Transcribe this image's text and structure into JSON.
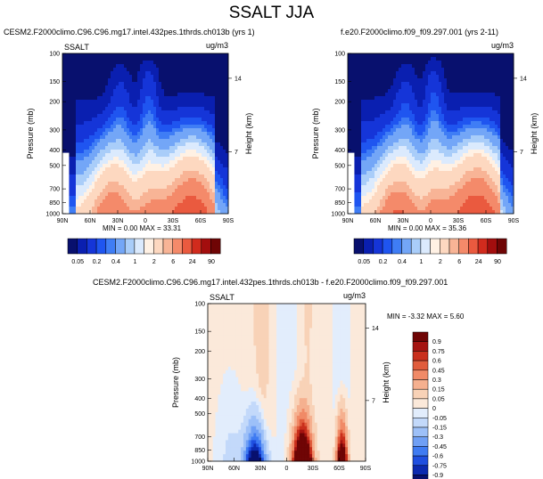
{
  "figure": {
    "title": "SSALT JJA"
  },
  "colors": {
    "abs_palette": [
      "#08106e",
      "#0a1fb0",
      "#1535d8",
      "#1f55f0",
      "#3f7df5",
      "#73a6f7",
      "#a9cdf9",
      "#dbeafd",
      "#fff1e4",
      "#fdd8c0",
      "#f8b496",
      "#f48a6a",
      "#ea5a3f",
      "#d12b1d",
      "#a30e0e",
      "#6f0505"
    ],
    "diff_palette": [
      "#08106e",
      "#0c2ab0",
      "#1f4fe0",
      "#3f7bf2",
      "#6f9ff5",
      "#9dc0f8",
      "#c3d9fa",
      "#e2edfc",
      "#fbe9da",
      "#f8d2b7",
      "#f5b08f",
      "#f08a67",
      "#e05c3c",
      "#c92f1c",
      "#a51411",
      "#6f0505"
    ]
  },
  "chart_data": [
    {
      "type": "heatmap",
      "title": "CESM2.F2000climo.C96.C96.mg17.intel.432pes.1thrds.ch013b (yrs 1)",
      "left_label": "SSALT",
      "units": "ug/m3",
      "ylabel": "Pressure (mb)",
      "ylabel_right": "Height (km)",
      "x_ticks": [
        "90N",
        "60N",
        "30N",
        "0",
        "30S",
        "60S",
        "90S"
      ],
      "y_ticks": [
        "100",
        "150",
        "200",
        "300",
        "400",
        "500",
        "700",
        "850",
        "1000"
      ],
      "y_right_ticks": [
        "14",
        "7"
      ],
      "stats": "MIN = 0.00  MAX = 33.31",
      "min": 0.0,
      "max": 33.31
    },
    {
      "type": "heatmap",
      "title": "f.e20.F2000climo.f09_f09.297.001 (yrs 2-11)",
      "units": "ug/m3",
      "ylabel": "Pressure (mb)",
      "ylabel_right": "Height (km)",
      "x_ticks": [
        "90N",
        "60N",
        "30N",
        "0",
        "30S",
        "60S",
        "90S"
      ],
      "y_ticks": [
        "100",
        "150",
        "200",
        "300",
        "400",
        "500",
        "700",
        "850",
        "1000"
      ],
      "y_right_ticks": [
        "14",
        "7"
      ],
      "stats": "MIN = 0.00  MAX = 35.36",
      "min": 0.0,
      "max": 35.36
    },
    {
      "type": "heatmap",
      "title": "CESM2.F2000climo.C96.C96.mg17.intel.432pes.1thrds.ch013b - f.e20.F2000climo.f09_f09.297.001",
      "left_label": "SSALT",
      "units": "ug/m3",
      "ylabel": "Pressure (mb)",
      "ylabel_right": "Height (km)",
      "x_ticks": [
        "90N",
        "60N",
        "30N",
        "0",
        "30S",
        "60S",
        "90S"
      ],
      "y_ticks": [
        "100",
        "150",
        "200",
        "300",
        "400",
        "500",
        "700",
        "850",
        "1000"
      ],
      "y_right_ticks": [
        "14",
        "7"
      ],
      "stats": "MIN = -3.32  MAX =  5.60",
      "min": -3.32,
      "max": 5.6
    }
  ],
  "colorbars": {
    "abs_labels": [
      "0.05",
      "0.2",
      "0.4",
      "1",
      "2",
      "6",
      "24",
      "90"
    ],
    "diff_labels": [
      "0.9",
      "0.75",
      "0.6",
      "0.45",
      "0.3",
      "0.15",
      "0.05",
      "0",
      "-0.05",
      "-0.15",
      "-0.3",
      "-0.45",
      "-0.6",
      "-0.75",
      "-0.9"
    ]
  }
}
